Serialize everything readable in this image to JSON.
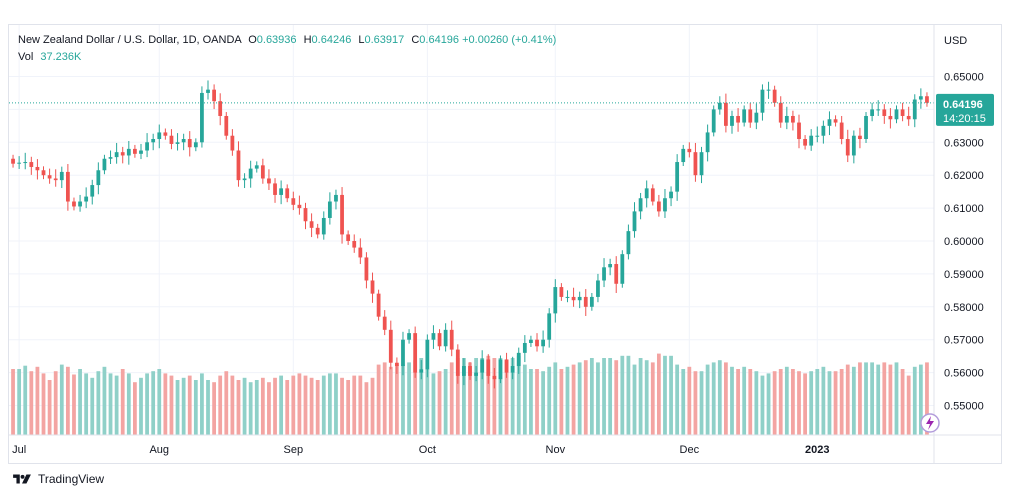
{
  "legend": {
    "symbol": "New Zealand Dollar / U.S. Dollar, 1D, OANDA",
    "o_key": "O",
    "o_val": "0.63936",
    "h_key": "H",
    "h_val": "0.64246",
    "l_key": "L",
    "l_val": "0.63917",
    "c_key": "C",
    "c_val": "0.64196",
    "change": "+0.00260 (+0.41%)",
    "vol_label": "Vol",
    "vol_val": "37.236K"
  },
  "price_scale": {
    "currency": "USD",
    "last_price": "0.64196",
    "countdown": "14:20:15"
  },
  "footer": {
    "brand": "TradingView"
  },
  "colors": {
    "up": "#26a69a",
    "down": "#ef5350",
    "vol_up": "#8fd0c8",
    "vol_down": "#f3a4a2",
    "grid": "#f0f3fa",
    "text": "#131722"
  },
  "chart_data": {
    "type": "candlestick",
    "y_ticks": [
      "0.65000",
      "0.64000",
      "0.63000",
      "0.62000",
      "0.61000",
      "0.60000",
      "0.59000",
      "0.58000",
      "0.57000",
      "0.56000",
      "0.55000"
    ],
    "ylim": [
      0.5425,
      0.6535
    ],
    "x_labels": [
      {
        "label": "Jul",
        "index": 1
      },
      {
        "label": "Aug",
        "index": 24
      },
      {
        "label": "Sep",
        "index": 46
      },
      {
        "label": "Oct",
        "index": 68
      },
      {
        "label": "Nov",
        "index": 89
      },
      {
        "label": "Dec",
        "index": 111
      },
      {
        "label": "2023",
        "index": 132
      }
    ],
    "close": [
      0.6235,
      0.6238,
      0.624,
      0.6225,
      0.6215,
      0.62,
      0.619,
      0.6185,
      0.621,
      0.612,
      0.6105,
      0.612,
      0.6135,
      0.617,
      0.6215,
      0.625,
      0.6255,
      0.627,
      0.626,
      0.628,
      0.6265,
      0.6275,
      0.63,
      0.631,
      0.633,
      0.632,
      0.6295,
      0.63,
      0.631,
      0.6285,
      0.63,
      0.645,
      0.646,
      0.6425,
      0.638,
      0.632,
      0.6275,
      0.6185,
      0.619,
      0.622,
      0.623,
      0.619,
      0.6175,
      0.614,
      0.616,
      0.613,
      0.611,
      0.61,
      0.606,
      0.604,
      0.602,
      0.607,
      0.612,
      0.614,
      0.602,
      0.6,
      0.598,
      0.595,
      0.588,
      0.584,
      0.577,
      0.573,
      0.563,
      0.562,
      0.57,
      0.572,
      0.56,
      0.561,
      0.57,
      0.572,
      0.568,
      0.573,
      0.567,
      0.559,
      0.562,
      0.559,
      0.56,
      0.564,
      0.559,
      0.558,
      0.564,
      0.56,
      0.562,
      0.566,
      0.569,
      0.57,
      0.568,
      0.57,
      0.578,
      0.586,
      0.583,
      0.583,
      0.582,
      0.583,
      0.58,
      0.583,
      0.588,
      0.592,
      0.593,
      0.587,
      0.596,
      0.603,
      0.609,
      0.613,
      0.616,
      0.612,
      0.609,
      0.613,
      0.615,
      0.624,
      0.628,
      0.627,
      0.62,
      0.627,
      0.633,
      0.64,
      0.642,
      0.635,
      0.638,
      0.636,
      0.64,
      0.636,
      0.639,
      0.646,
      0.646,
      0.642,
      0.636,
      0.638,
      0.636,
      0.631,
      0.629,
      0.632,
      0.632,
      0.635,
      0.637,
      0.636,
      0.631,
      0.626,
      0.632,
      0.631,
      0.638,
      0.64,
      0.64,
      0.638,
      0.637,
      0.64,
      0.638,
      0.637,
      0.643,
      0.644,
      0.642
    ],
    "open_offset_note_removed": null,
    "volume": [
      0.6,
      0.6,
      0.63,
      0.58,
      0.62,
      0.56,
      0.5,
      0.58,
      0.64,
      0.62,
      0.55,
      0.6,
      0.56,
      0.52,
      0.58,
      0.62,
      0.56,
      0.54,
      0.6,
      0.56,
      0.48,
      0.52,
      0.56,
      0.58,
      0.6,
      0.56,
      0.54,
      0.5,
      0.52,
      0.54,
      0.5,
      0.56,
      0.5,
      0.48,
      0.54,
      0.58,
      0.54,
      0.5,
      0.52,
      0.48,
      0.5,
      0.52,
      0.48,
      0.52,
      0.54,
      0.5,
      0.54,
      0.56,
      0.54,
      0.52,
      0.5,
      0.54,
      0.56,
      0.56,
      0.52,
      0.5,
      0.54,
      0.54,
      0.48,
      0.52,
      0.64,
      0.66,
      0.62,
      0.64,
      0.64,
      0.66,
      0.68,
      0.7,
      0.6,
      0.56,
      0.58,
      0.6,
      0.66,
      0.7,
      0.7,
      0.66,
      0.7,
      0.7,
      0.72,
      0.7,
      0.7,
      0.68,
      0.7,
      0.72,
      0.64,
      0.6,
      0.6,
      0.58,
      0.62,
      0.66,
      0.6,
      0.62,
      0.64,
      0.66,
      0.68,
      0.7,
      0.66,
      0.7,
      0.7,
      0.68,
      0.72,
      0.72,
      0.64,
      0.7,
      0.68,
      0.66,
      0.74,
      0.72,
      0.72,
      0.64,
      0.6,
      0.62,
      0.58,
      0.58,
      0.64,
      0.66,
      0.68,
      0.66,
      0.62,
      0.6,
      0.62,
      0.6,
      0.58,
      0.54,
      0.56,
      0.58,
      0.6,
      0.62,
      0.6,
      0.58,
      0.56,
      0.58,
      0.6,
      0.62,
      0.58,
      0.58,
      0.6,
      0.64,
      0.62,
      0.66,
      0.66,
      0.66,
      0.64,
      0.66,
      0.64,
      0.66,
      0.6,
      0.54,
      0.62,
      0.64,
      0.66
    ]
  }
}
